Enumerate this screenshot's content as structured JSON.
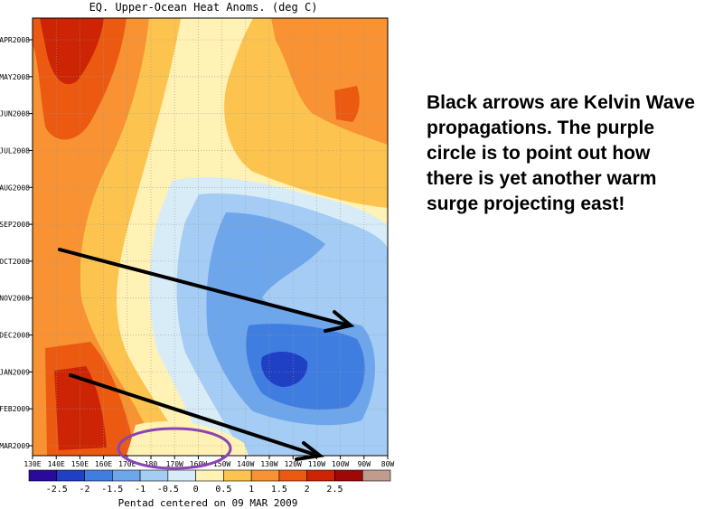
{
  "chart_data": {
    "type": "heatmap",
    "title": "EQ. Upper-Ocean Heat Anoms. (deg C)",
    "xlabel": "",
    "ylabel": "",
    "x_tick_labels": [
      "130E",
      "140E",
      "150E",
      "160E",
      "170E",
      "180",
      "170W",
      "160W",
      "150W",
      "140W",
      "130W",
      "120W",
      "110W",
      "100W",
      "90W",
      "80W"
    ],
    "y_tick_labels": [
      "APR2008",
      "MAY2008",
      "JUN2008",
      "JUL2008",
      "AUG2008",
      "SEP2008",
      "OCT2008",
      "NOV2008",
      "DEC2008",
      "JAN2009",
      "FEB2009",
      "MAR2009"
    ],
    "colorbar": {
      "tick_labels": [
        "-2.5",
        "-2",
        "-1.5",
        "-1",
        "-0.5",
        "0",
        "0.5",
        "1",
        "1.5",
        "2",
        "2.5"
      ],
      "bins": [
        {
          "range": "< -2.5",
          "color": "#2a0a9c"
        },
        {
          "range": "-2.5 to -2",
          "color": "#1f3fc4"
        },
        {
          "range": "-2 to -1.5",
          "color": "#3f7de0"
        },
        {
          "range": "-1.5 to -1",
          "color": "#6ea6ec"
        },
        {
          "range": "-1 to -0.5",
          "color": "#a4ccf4"
        },
        {
          "range": "-0.5 to 0",
          "color": "#d8ecf8"
        },
        {
          "range": "0 to 0.5",
          "color": "#fff2b4"
        },
        {
          "range": "0.5 to 1",
          "color": "#fcc44e"
        },
        {
          "range": "1 to 1.5",
          "color": "#f89232"
        },
        {
          "range": "1.5 to 2",
          "color": "#ec5a12"
        },
        {
          "range": "2 to 2.5",
          "color": "#cc2404"
        },
        {
          "range": "> 2.5",
          "color": "#a00808"
        },
        {
          "range": "missing",
          "color": "#c09c8c"
        }
      ]
    },
    "caption": "Pentad centered on 09 MAR 2009",
    "grid": true,
    "annotations": {
      "arrows": 2,
      "arrow_color": "#000000",
      "circle_color": "#8a44b4"
    }
  },
  "note": {
    "text": "Black arrows are Kelvin Wave propagations. The purple circle is to point out how there is yet another warm surge projecting east!"
  }
}
